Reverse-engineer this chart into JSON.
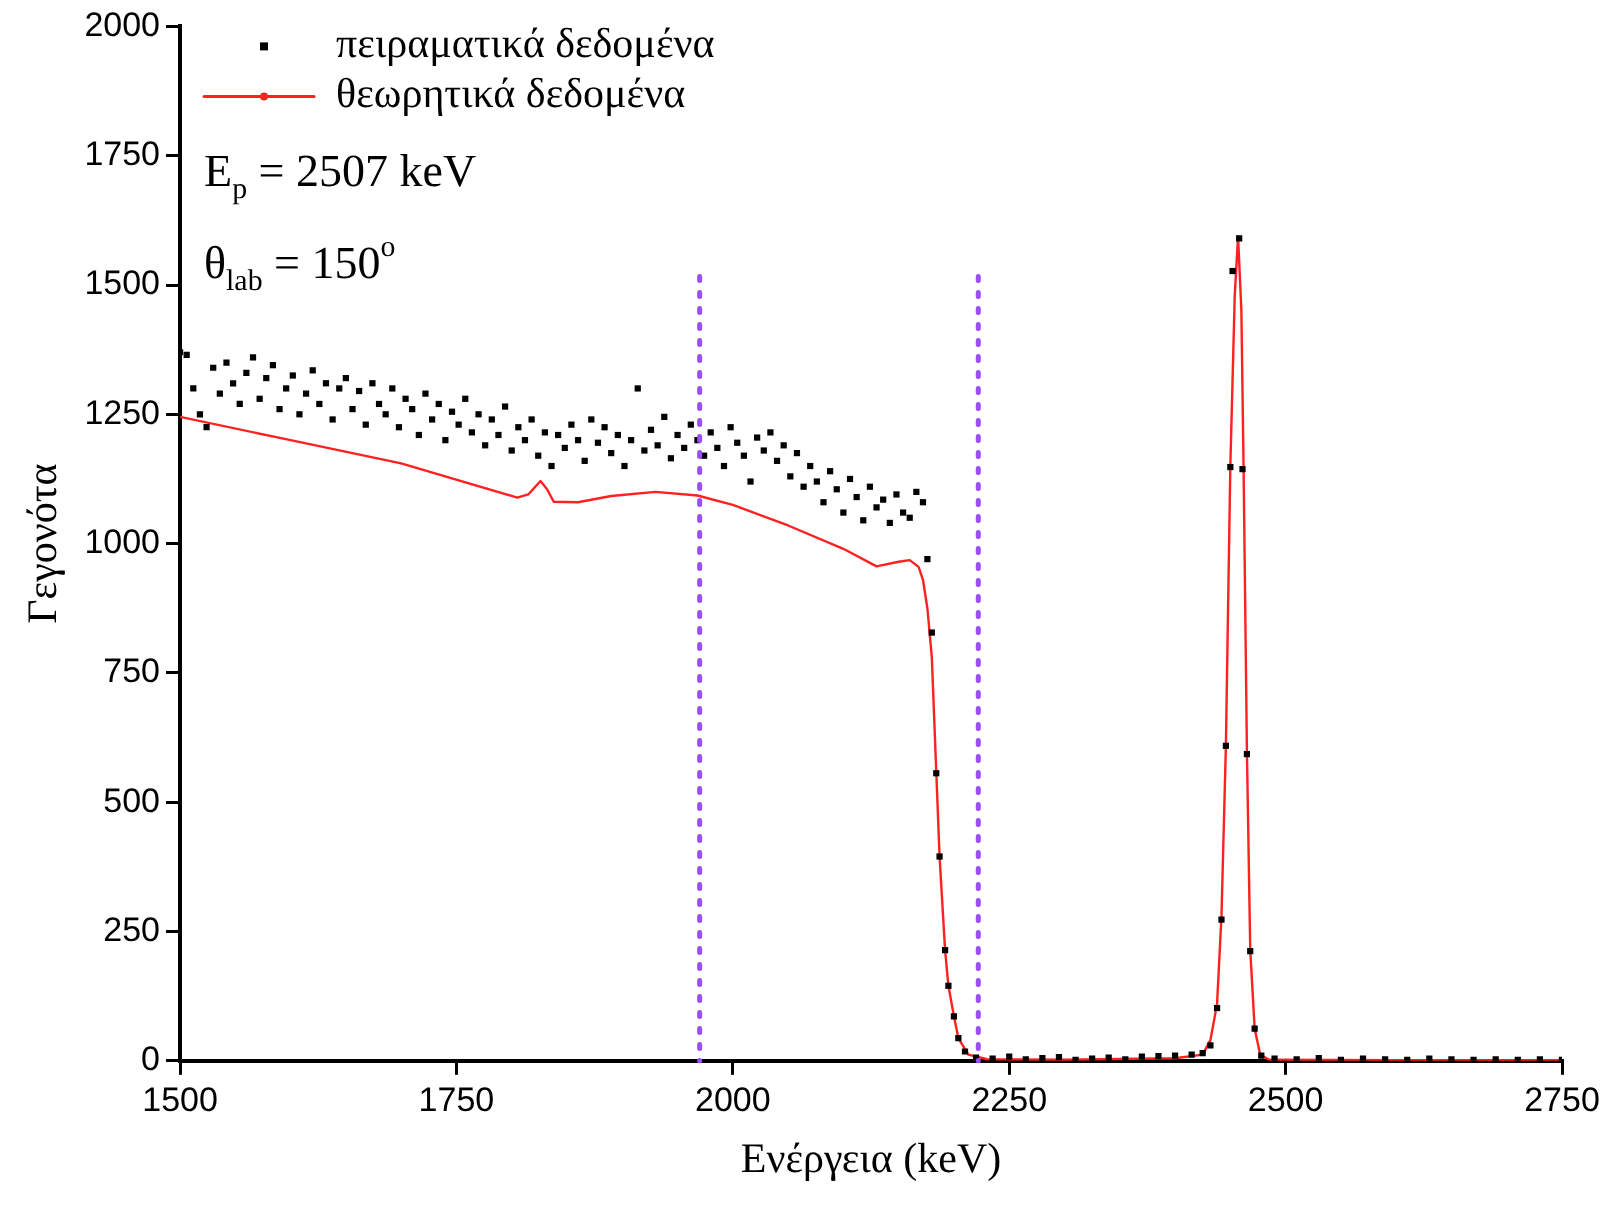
{
  "chart_data": {
    "type": "scatter",
    "xlabel": "Ενέργεια (keV)",
    "ylabel": "Γεγονότα",
    "xlim": [
      1500,
      2750
    ],
    "xticks": [
      1500,
      1750,
      2000,
      2250,
      2500,
      2750
    ],
    "ylim": [
      0,
      2000
    ],
    "yticks": [
      0,
      250,
      500,
      750,
      1000,
      1250,
      1500,
      1750,
      2000
    ],
    "grid": false,
    "legend": "top left",
    "annotations": [
      "E$_{p}$ = 2507 keV",
      "θ$_{lab}$ = 150$^{o}$"
    ],
    "ref_lines": [
      {
        "axis": "x",
        "value": 1970,
        "color": "#9b4dff",
        "line_style": "dotted"
      },
      {
        "axis": "x",
        "value": 2222,
        "color": "#9b4dff",
        "line_style": "dotted"
      }
    ],
    "series": [
      {
        "name": "πειραματικά δεδομένα",
        "color": "#000000",
        "marker": "square",
        "x": [
          1500,
          1506,
          1512,
          1518,
          1524,
          1530,
          1536,
          1542,
          1548,
          1554,
          1560,
          1566,
          1572,
          1578,
          1584,
          1590,
          1596,
          1602,
          1608,
          1614,
          1620,
          1626,
          1632,
          1638,
          1644,
          1650,
          1656,
          1662,
          1668,
          1674,
          1680,
          1686,
          1692,
          1698,
          1704,
          1710,
          1716,
          1722,
          1728,
          1734,
          1740,
          1746,
          1752,
          1758,
          1764,
          1770,
          1776,
          1782,
          1788,
          1794,
          1800,
          1806,
          1812,
          1818,
          1824,
          1830,
          1836,
          1842,
          1848,
          1854,
          1860,
          1866,
          1872,
          1878,
          1884,
          1890,
          1896,
          1902,
          1908,
          1914,
          1920,
          1926,
          1932,
          1938,
          1944,
          1950,
          1956,
          1962,
          1968,
          1974,
          1980,
          1986,
          1992,
          1998,
          2004,
          2010,
          2016,
          2022,
          2028,
          2034,
          2040,
          2046,
          2052,
          2058,
          2064,
          2070,
          2076,
          2082,
          2088,
          2094,
          2100,
          2106,
          2112,
          2118,
          2124,
          2130,
          2136,
          2142,
          2148,
          2154,
          2160,
          2166,
          2172,
          2176,
          2180,
          2184,
          2187,
          2192,
          2195,
          2200,
          2204,
          2210,
          2220,
          2235,
          2250,
          2265,
          2280,
          2295,
          2310,
          2325,
          2340,
          2355,
          2370,
          2385,
          2400,
          2415,
          2425,
          2432,
          2438,
          2442,
          2446,
          2450,
          2452,
          2458,
          2461,
          2465,
          2468,
          2472,
          2478,
          2490,
          2510,
          2530,
          2550,
          2570,
          2590,
          2610,
          2630,
          2650,
          2670,
          2690,
          2710,
          2730,
          2750
        ],
        "values": [
          1370,
          1365,
          1300,
          1250,
          1225,
          1340,
          1290,
          1350,
          1310,
          1270,
          1330,
          1360,
          1280,
          1320,
          1345,
          1260,
          1300,
          1325,
          1250,
          1290,
          1335,
          1270,
          1310,
          1240,
          1300,
          1320,
          1260,
          1295,
          1230,
          1310,
          1270,
          1250,
          1300,
          1225,
          1280,
          1260,
          1210,
          1290,
          1240,
          1270,
          1200,
          1255,
          1230,
          1280,
          1215,
          1250,
          1190,
          1240,
          1210,
          1265,
          1180,
          1225,
          1200,
          1240,
          1170,
          1215,
          1150,
          1210,
          1185,
          1230,
          1200,
          1160,
          1240,
          1195,
          1225,
          1175,
          1210,
          1150,
          1200,
          1300,
          1180,
          1220,
          1190,
          1245,
          1165,
          1210,
          1185,
          1230,
          1200,
          1170,
          1215,
          1185,
          1150,
          1225,
          1195,
          1170,
          1120,
          1205,
          1180,
          1215,
          1160,
          1190,
          1130,
          1175,
          1110,
          1150,
          1120,
          1080,
          1140,
          1105,
          1060,
          1125,
          1090,
          1045,
          1110,
          1070,
          1085,
          1040,
          1095,
          1060,
          1050,
          1100,
          1080,
          970,
          828,
          556,
          395,
          214,
          145,
          86,
          44,
          18,
          6,
          4,
          8,
          3,
          5,
          7,
          2,
          4,
          6,
          3,
          8,
          9,
          10,
          12,
          15,
          30,
          102,
          273,
          609,
          1148,
          1527,
          1590,
          1144,
          593,
          212,
          62,
          10,
          4,
          3,
          5,
          2,
          4,
          3,
          2,
          4,
          3,
          2,
          3,
          2,
          3,
          2
        ]
      },
      {
        "name": "θεωρητικά δεδομένα",
        "type": "line",
        "color": "#ff2020",
        "marker": "none",
        "x": [
          1500,
          1600,
          1700,
          1805,
          1815,
          1826,
          1832,
          1838,
          1860,
          1890,
          1930,
          1968,
          2000,
          2050,
          2100,
          2130,
          2150,
          2160,
          2168,
          2172,
          2176,
          2180,
          2184,
          2187,
          2192,
          2195,
          2200,
          2204,
          2213,
          2230,
          2300,
          2400,
          2425,
          2432,
          2438,
          2442,
          2446,
          2450,
          2454,
          2457,
          2460,
          2462,
          2465,
          2468,
          2472,
          2477,
          2485,
          2600,
          2750
        ],
        "values": [
          1245,
          1200,
          1155,
          1089,
          1095,
          1121,
          1105,
          1081,
          1080,
          1092,
          1100,
          1093,
          1075,
          1035,
          990,
          956,
          965,
          968,
          955,
          930,
          875,
          780,
          560,
          395,
          214,
          145,
          86,
          44,
          12,
          3,
          2,
          5,
          12,
          40,
          110,
          280,
          610,
          1150,
          1480,
          1594,
          1450,
          1144,
          600,
          215,
          62,
          12,
          2,
          1,
          1
        ]
      }
    ]
  }
}
